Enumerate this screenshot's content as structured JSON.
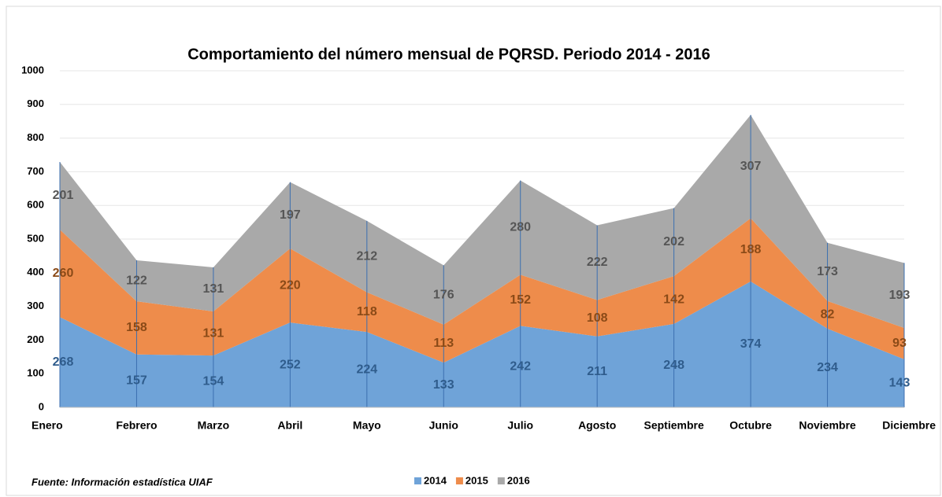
{
  "chart_data": {
    "type": "stacked_area",
    "title": "Comportamiento del número mensual de PQRSD. Periodo 2014 -  2016",
    "note": "Fuente: Información estadística UIAF",
    "categories": [
      "Enero",
      "Febrero",
      "Marzo",
      "Abril",
      "Mayo",
      "Junio",
      "Julio",
      "Agosto",
      "Septiembre",
      "Octubre",
      "Noviembre",
      "Diciembre"
    ],
    "series": [
      {
        "name": "2014",
        "color": "#6fa3d8",
        "label_color": "#2f5c8c",
        "values": [
          268,
          157,
          154,
          252,
          224,
          133,
          242,
          211,
          248,
          374,
          234,
          143
        ]
      },
      {
        "name": "2015",
        "color": "#ee8c4b",
        "label_color": "#8a4a17",
        "values": [
          260,
          158,
          131,
          220,
          118,
          113,
          152,
          108,
          142,
          188,
          82,
          93
        ]
      },
      {
        "name": "2016",
        "color": "#a9a9a9",
        "label_color": "#555555",
        "values": [
          201,
          122,
          131,
          197,
          212,
          176,
          280,
          222,
          202,
          307,
          173,
          193
        ]
      }
    ],
    "stacked": true,
    "ylim": [
      0,
      1000
    ],
    "yticks": [
      0,
      100,
      200,
      300,
      400,
      500,
      600,
      700,
      800,
      900,
      1000
    ],
    "grid": true,
    "legend": "bottom"
  }
}
